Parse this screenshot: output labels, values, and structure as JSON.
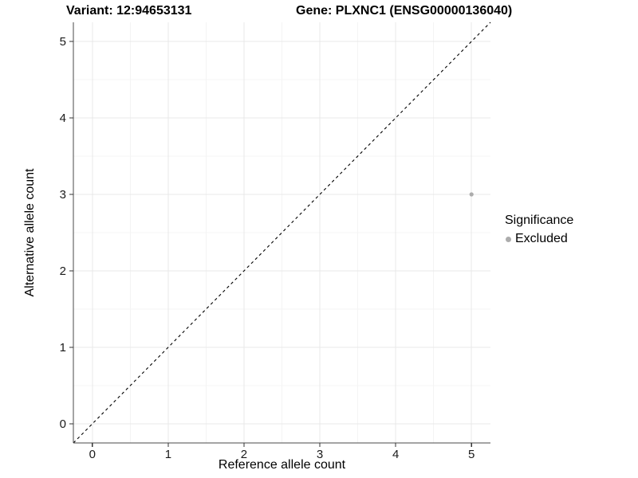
{
  "chart_data": {
    "type": "scatter",
    "titles": {
      "left": "Variant: 12:94653131",
      "right": "Gene: PLXNC1 (ENSG00000136040)"
    },
    "xlabel": "Reference allele count",
    "ylabel": "Alternative allele count",
    "xlim": [
      -0.25,
      5.25
    ],
    "ylim": [
      -0.25,
      5.25
    ],
    "xticks": [
      0,
      1,
      2,
      3,
      4,
      5
    ],
    "yticks": [
      0,
      1,
      2,
      3,
      4,
      5
    ],
    "grid": {
      "major": true,
      "minor": true
    },
    "reference_line": {
      "type": "identity y=x",
      "from": [
        -0.25,
        -0.25
      ],
      "to": [
        5.25,
        5.25
      ],
      "style": "dashed",
      "color": "#000000"
    },
    "series": [
      {
        "name": "Excluded",
        "color": "#ACACAC",
        "points": [
          {
            "x": 5,
            "y": 3
          }
        ]
      }
    ],
    "legend": {
      "title": "Significance",
      "position": "right",
      "items": [
        {
          "label": "Excluded",
          "color": "#ACACAC",
          "marker": "circle"
        }
      ]
    }
  },
  "colors": {
    "background": "#FFFFFF",
    "grid_major": "#E8E8E8",
    "grid_minor": "#F4F4F4",
    "axis_line": "#4A4A4A",
    "tick_mark": "#333333",
    "tick_text": "#1A1A1A",
    "text": "#000000"
  }
}
